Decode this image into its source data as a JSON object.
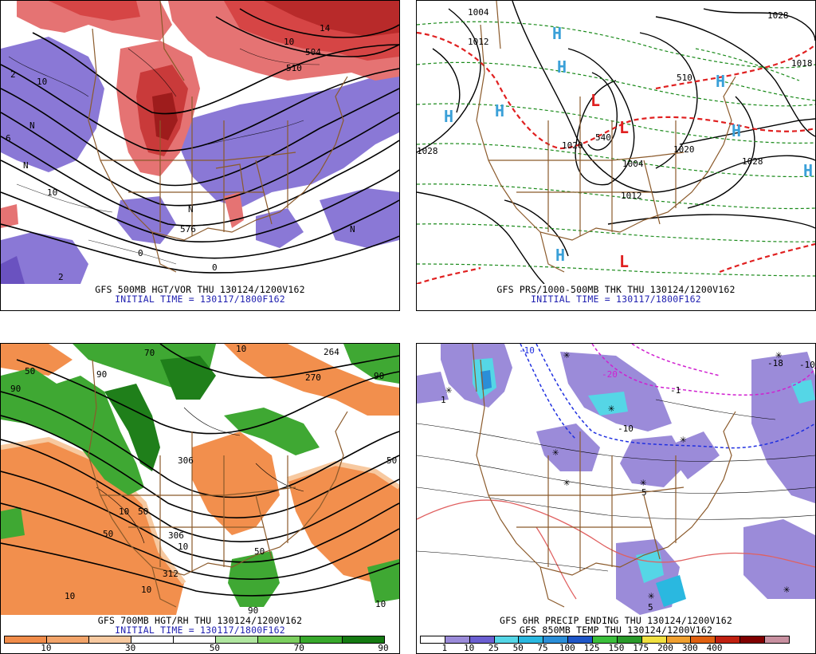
{
  "panels": [
    {
      "caption": "GFS 500MB HGT/VOR THU 130124/1200V162",
      "subcaption": "INITIAL TIME = 130117/1800F162",
      "labels": [
        "10",
        "14",
        "504",
        "510",
        "10",
        "6",
        "2",
        "N",
        "576",
        "10",
        "0",
        "0",
        "2",
        "N",
        "N",
        "N"
      ]
    },
    {
      "caption": "GFS PRS/1000-500MB THK THU 130124/1200V162",
      "subcaption": "INITIAL TIME = 130117/1800F162",
      "labels": [
        "1004",
        "1012",
        "1028",
        "1020",
        "1028",
        "540",
        "1020",
        "1028",
        "510",
        "1004",
        "1012",
        "1018"
      ],
      "highs": [
        "H",
        "H",
        "H",
        "H",
        "H",
        "H",
        "H"
      ],
      "lows": [
        "L",
        "L",
        "L"
      ]
    },
    {
      "caption": "GFS 700MB HGT/RH THU 130124/1200V162",
      "subcaption": "INITIAL TIME = 130117/1800F162",
      "labels": [
        "50",
        "90",
        "90",
        "70",
        "10",
        "264",
        "270",
        "90",
        "306",
        "10",
        "50",
        "306",
        "10",
        "312",
        "10",
        "10",
        "50",
        "50",
        "90",
        "50",
        "10"
      ],
      "legend": {
        "colors": [
          "#f08c4a",
          "#f2a46a",
          "#f7c9a0",
          "#ffffff",
          "#ffffff",
          "#b0e6a0",
          "#7ccf5f",
          "#38a82c",
          "#157a12"
        ],
        "ticks": [
          "10",
          "30",
          "50",
          "70",
          "90"
        ]
      }
    },
    {
      "caption": "GFS 6HR PRECIP ENDING THU 130124/1200V162",
      "subcaption": "GFS 850MB TEMP THU 130124/1200V162",
      "labels": [
        "-10",
        "-20",
        "-10",
        "-1",
        "-18",
        "-10",
        "1",
        "5",
        "5"
      ],
      "legend": {
        "colors": [
          "#ffffff",
          "#9b8bd9",
          "#6b5fd1",
          "#55d6e6",
          "#2ab8e0",
          "#2a8ed8",
          "#1e56c8",
          "#3bbf3b",
          "#2a9a2a",
          "#f0e040",
          "#f0a030",
          "#e06010",
          "#c02010",
          "#800000",
          "#c890a0"
        ],
        "ticks": [
          "1",
          "10",
          "25",
          "50",
          "75",
          "100",
          "125",
          "150",
          "175",
          "200",
          "300",
          "400"
        ]
      }
    }
  ]
}
